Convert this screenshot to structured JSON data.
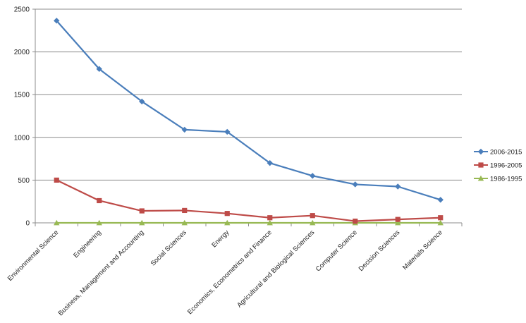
{
  "chart_data": {
    "type": "line",
    "categories": [
      "Environmental Science",
      "Engineering",
      "Business, Management  and Accounting",
      "Social Sciences",
      "Energy",
      "Economics, Econometrics and Finance",
      "Agricultural and Biological Sciences",
      "Computer Science",
      "Decision Sciences",
      "Materials Science"
    ],
    "series": [
      {
        "name": "2006-2015",
        "color": "#4a7ebb",
        "marker": "diamond",
        "values": [
          2365,
          1800,
          1420,
          1090,
          1065,
          700,
          550,
          450,
          425,
          270
        ]
      },
      {
        "name": "1996-2005",
        "color": "#be4b48",
        "marker": "square",
        "values": [
          500,
          260,
          140,
          145,
          110,
          60,
          85,
          20,
          40,
          60
        ]
      },
      {
        "name": "1986-1995",
        "color": "#98b954",
        "marker": "triangle",
        "values": [
          0,
          0,
          0,
          0,
          0,
          0,
          0,
          0,
          0,
          0
        ]
      }
    ],
    "yticks": [
      "0",
      "500",
      "1000",
      "1500",
      "2000",
      "2500"
    ],
    "ylim": [
      0,
      2500
    ],
    "grid": true,
    "legend_position": "right"
  }
}
